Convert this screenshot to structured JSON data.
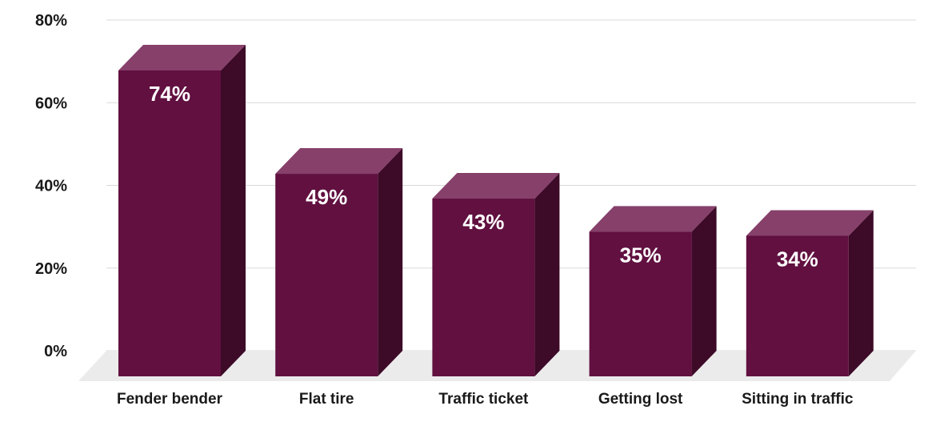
{
  "chart_data": {
    "type": "bar",
    "style": "3d-columns",
    "categories": [
      "Fender bender",
      "Flat tire",
      "Traffic ticket",
      "Getting lost",
      "Sitting in traffic"
    ],
    "values": [
      74,
      49,
      43,
      35,
      34
    ],
    "data_labels": [
      "74%",
      "49%",
      "43%",
      "35%",
      "34%"
    ],
    "y_ticks": [
      "0%",
      "20%",
      "40%",
      "60%",
      "80%"
    ],
    "y_tick_values": [
      0,
      20,
      40,
      60,
      80
    ],
    "ylim": [
      0,
      80
    ],
    "grid": true,
    "legend": "none",
    "colors": {
      "front": "#611040",
      "top": "#86406a",
      "side": "#3d0a28",
      "floor": "#ebebeb",
      "grid": "#d9d9d9"
    }
  }
}
